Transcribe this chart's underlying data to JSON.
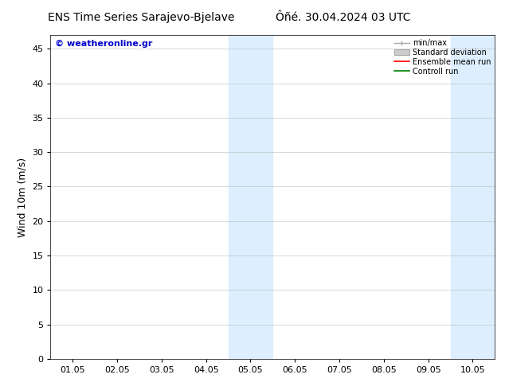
{
  "title": "ENS Time Series Sarajevo-Bjelave",
  "title2": "Ôñé. 30.04.2024 03 UTC",
  "ylabel": "Wind 10m (m/s)",
  "watermark": "© weatheronline.gr",
  "ylim": [
    0,
    47
  ],
  "yticks": [
    0,
    5,
    10,
    15,
    20,
    25,
    30,
    35,
    40,
    45
  ],
  "xtick_labels": [
    "01.05",
    "02.05",
    "03.05",
    "04.05",
    "05.05",
    "06.05",
    "07.05",
    "08.05",
    "09.05",
    "10.05"
  ],
  "xtick_positions": [
    0,
    1,
    2,
    3,
    4,
    5,
    6,
    7,
    8,
    9
  ],
  "xlim": [
    -0.5,
    9.5
  ],
  "shaded_regions": [
    {
      "xstart": 3.5,
      "xend": 4.5,
      "color": "#ddeeff"
    },
    {
      "xstart": 8.5,
      "xend": 9.5,
      "color": "#ddeeff"
    }
  ],
  "bg_color": "#ffffff",
  "legend_entries": [
    "min/max",
    "Standard deviation",
    "Ensemble mean run",
    "Controll run"
  ],
  "title_fontsize": 10,
  "tick_fontsize": 8,
  "ylabel_fontsize": 9,
  "watermark_color": "#0000cc",
  "watermark_fontsize": 8
}
